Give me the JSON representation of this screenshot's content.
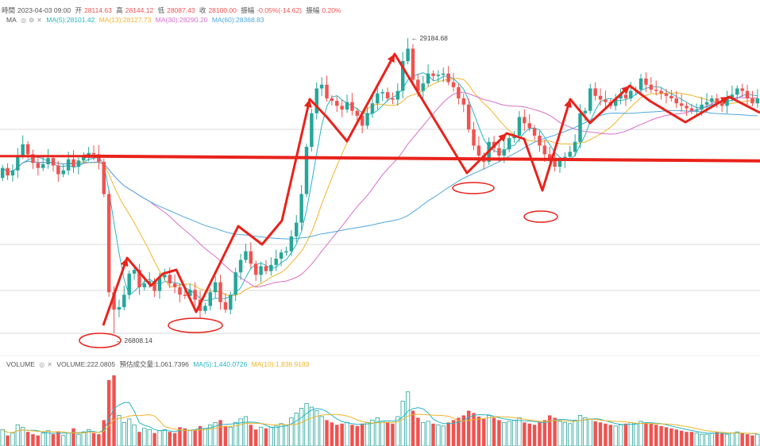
{
  "ohlc_header": {
    "time_label": "時間",
    "time": "2023-04-03 09:00",
    "open_label": "开",
    "open": "28114.63",
    "high_label": "高",
    "high": "28144.12",
    "low_label": "低",
    "low": "28087.43",
    "close_label": "收",
    "close": "28100.00",
    "change_label": "振幅",
    "change": "-0.05%(-14.62)",
    "amp_label": "振幅",
    "amp": "0.20%"
  },
  "ma_legend": {
    "label": "MA",
    "ma5": "MA(5):28101.42",
    "ma13": "MA(13):28127.73",
    "ma30": "MA(30):28290.20",
    "ma60": "MA(60):28368.83"
  },
  "volume_legend": {
    "label": "VOLUME",
    "volume": "VOLUME:222.0805",
    "estimate": "預估成交量:1,061.7396",
    "ma5": "MA(5):1,440.0726",
    "ma10": "MA(10):1,836.9183"
  },
  "colors": {
    "up": "#26a69a",
    "down": "#ef5350",
    "annotation": "#e8231b",
    "ma5": "#26b5c7",
    "ma13": "#f0b429",
    "ma30": "#d96fc9",
    "ma60": "#4ea8de",
    "grid": "#d9d9d9"
  },
  "chart_data": {
    "type": "candlestick",
    "price_labels": {
      "high": "29184.68",
      "low": "26808.14"
    },
    "price_range": [
      26650,
      29300
    ],
    "marked_high": 29184.68,
    "marked_low": 26808.14,
    "annotation_level": 28210,
    "closes": [
      28140,
      28080,
      28120,
      28240,
      28330,
      28250,
      28180,
      28140,
      28170,
      28220,
      28160,
      28090,
      28120,
      28210,
      28150,
      28200,
      28230,
      28260,
      28250,
      28190,
      27930,
      27140,
      27000,
      27020,
      27120,
      27290,
      27320,
      27180,
      27210,
      27230,
      27150,
      27260,
      27280,
      27210,
      27180,
      27120,
      27110,
      27160,
      27080,
      26990,
      27030,
      27140,
      27220,
      27060,
      27000,
      27120,
      27300,
      27400,
      27470,
      27370,
      27280,
      27350,
      27310,
      27360,
      27410,
      27460,
      27470,
      27590,
      27700,
      27930,
      28310,
      28580,
      28780,
      28810,
      28700,
      28680,
      28640,
      28610,
      28670,
      28600,
      28560,
      28480,
      28580,
      28660,
      28740,
      28750,
      28700,
      28690,
      28760,
      29000,
      29100,
      28850,
      28760,
      28820,
      28900,
      28880,
      28890,
      28900,
      28830,
      28790,
      28700,
      28650,
      28450,
      28320,
      28240,
      28190,
      28350,
      28300,
      28240,
      28290,
      28380,
      28400,
      28550,
      28500,
      28460,
      28400,
      28320,
      28250,
      28210,
      28150,
      28200,
      28230,
      28270,
      28350,
      28580,
      28600,
      28780,
      28720,
      28690,
      28670,
      28640,
      28700,
      28730,
      28700,
      28760,
      28770,
      28860,
      28810,
      28770,
      28760,
      28740,
      28720,
      28700,
      28660,
      28640,
      28620,
      28600,
      28610,
      28650,
      28670,
      28700,
      28660,
      28640,
      28700,
      28730,
      28780,
      28760,
      28700,
      28660,
      28700
    ],
    "opens": [
      28060,
      28140,
      28080,
      28120,
      28240,
      28330,
      28250,
      28180,
      28140,
      28170,
      28220,
      28160,
      28090,
      28120,
      28210,
      28150,
      28200,
      28230,
      28260,
      28250,
      28190,
      27930,
      27140,
      27000,
      27020,
      27120,
      27290,
      27320,
      27180,
      27210,
      27230,
      27150,
      27260,
      27280,
      27210,
      27180,
      27120,
      27110,
      27160,
      27080,
      26990,
      27030,
      27140,
      27220,
      27060,
      27000,
      27120,
      27300,
      27400,
      27470,
      27370,
      27280,
      27350,
      27310,
      27360,
      27410,
      27460,
      27470,
      27590,
      27700,
      27930,
      28310,
      28580,
      28780,
      28810,
      28700,
      28680,
      28640,
      28610,
      28670,
      28600,
      28560,
      28480,
      28580,
      28660,
      28740,
      28750,
      28700,
      28690,
      28760,
      29000,
      29100,
      28850,
      28760,
      28820,
      28900,
      28880,
      28890,
      28900,
      28830,
      28790,
      28700,
      28650,
      28450,
      28320,
      28240,
      28190,
      28350,
      28300,
      28240,
      28290,
      28380,
      28400,
      28550,
      28500,
      28460,
      28400,
      28320,
      28250,
      28210,
      28150,
      28200,
      28230,
      28270,
      28350,
      28580,
      28600,
      28780,
      28720,
      28690,
      28670,
      28640,
      28700,
      28730,
      28700,
      28760,
      28770,
      28860,
      28810,
      28770,
      28760,
      28740,
      28720,
      28700,
      28660,
      28640,
      28620,
      28600,
      28610,
      28650,
      28670,
      28700,
      28660,
      28640,
      28700,
      28730,
      28780,
      28760,
      28700,
      28660
    ],
    "volumes": [
      140,
      90,
      110,
      180,
      160,
      120,
      100,
      90,
      110,
      130,
      100,
      120,
      90,
      110,
      150,
      100,
      120,
      140,
      110,
      100,
      220,
      560,
      600,
      260,
      200,
      230,
      180,
      120,
      150,
      140,
      110,
      130,
      140,
      120,
      110,
      160,
      150,
      130,
      140,
      170,
      150,
      180,
      200,
      220,
      170,
      160,
      200,
      230,
      250,
      180,
      140,
      160,
      150,
      160,
      170,
      190,
      180,
      240,
      280,
      320,
      360,
      330,
      300,
      250,
      220,
      200,
      180,
      190,
      200,
      180,
      170,
      190,
      200,
      220,
      240,
      210,
      200,
      190,
      250,
      380,
      460,
      300,
      240,
      200,
      210,
      190,
      180,
      170,
      200,
      220,
      240,
      260,
      300,
      280,
      250,
      230,
      260,
      240,
      220,
      200,
      210,
      220,
      240,
      200,
      190,
      180,
      200,
      220,
      260,
      240,
      210,
      200,
      190,
      220,
      260,
      240,
      230,
      210,
      200,
      190,
      180,
      170,
      180,
      190,
      200,
      190,
      210,
      200,
      190,
      180,
      170,
      160,
      150,
      140,
      130,
      120,
      120,
      110,
      100,
      100,
      110,
      120,
      110,
      100,
      110,
      120,
      110,
      100,
      90,
      100
    ],
    "vol_range": [
      0,
      620
    ]
  }
}
